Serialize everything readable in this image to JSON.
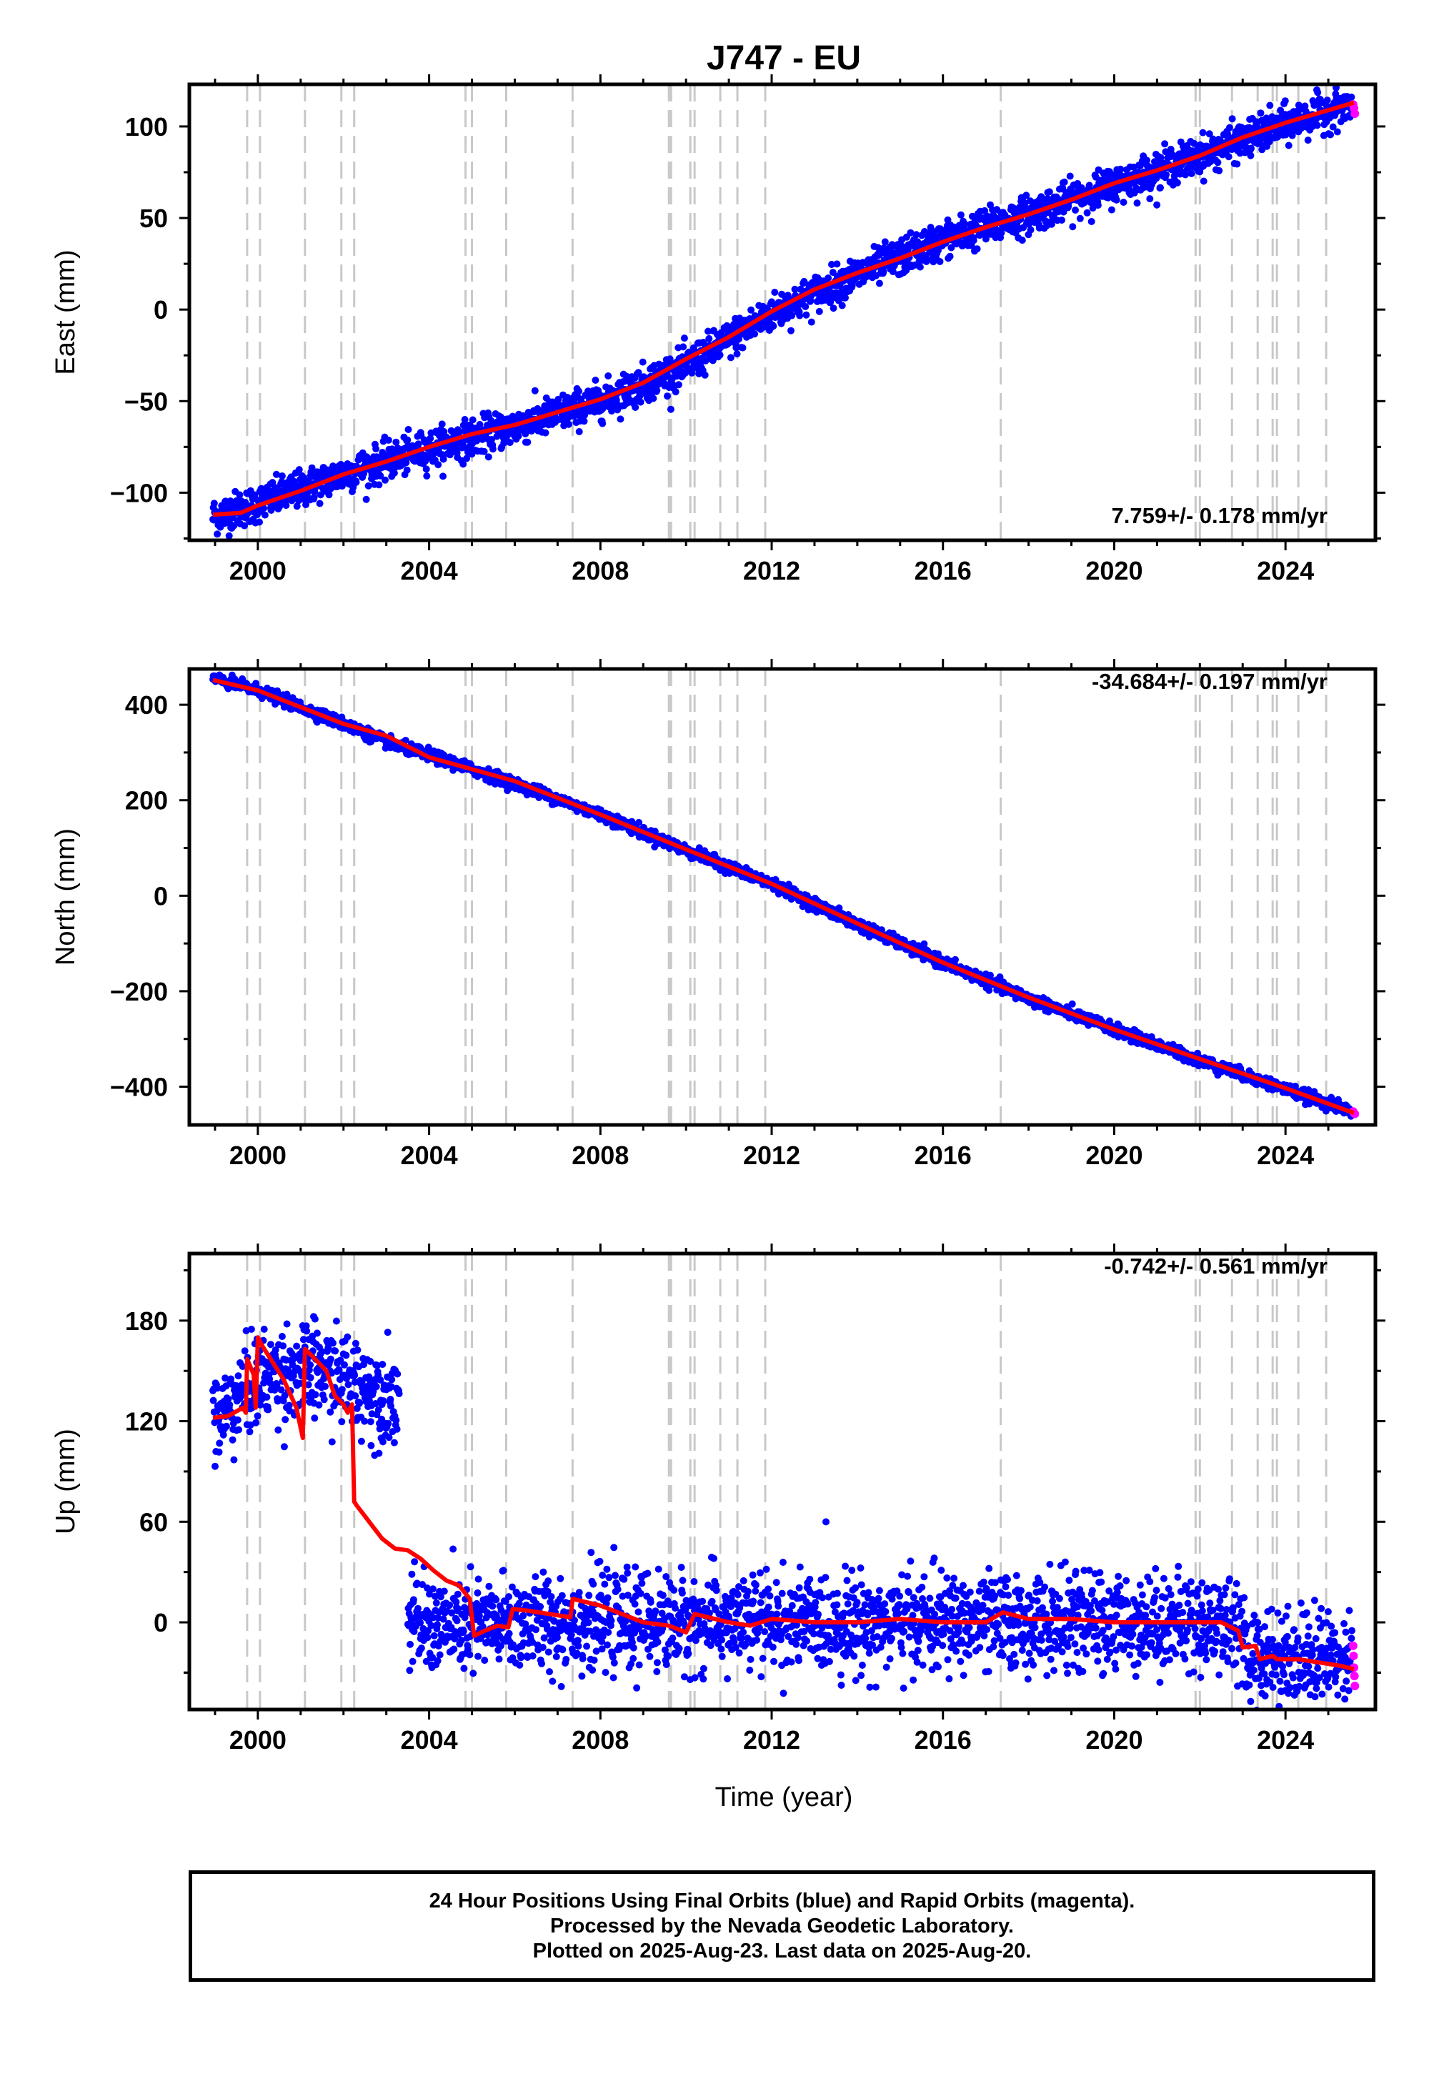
{
  "title": "J747 - EU",
  "colors": {
    "final_orbits": "#0000ff",
    "rapid_orbits": "#ff00ff",
    "model": "#ff0000",
    "events": "#c8c8c8"
  },
  "caption": {
    "line1": "24 Hour Positions Using Final Orbits (blue) and Rapid Orbits (magenta).",
    "line2": "Processed by the Nevada Geodetic Laboratory.",
    "line3": "Plotted on 2025-Aug-23. Last data on 2025-Aug-20."
  },
  "chart_data": [
    {
      "type": "scatter",
      "component": "east",
      "ylabel": "East (mm)",
      "xlim": [
        1998.4,
        2026.1
      ],
      "ylim": [
        -126,
        123
      ],
      "xticks": [
        2000,
        2004,
        2008,
        2012,
        2016,
        2020,
        2024
      ],
      "yticks": [
        -100,
        -50,
        0,
        50,
        100
      ],
      "rate_label": "7.759+/- 0.178 mm/yr",
      "data_start": 1998.95,
      "data_end": 2025.62,
      "gaps": [],
      "series": [
        {
          "name": "Final Orbits",
          "color": "#0000ff",
          "x": [
            1998.95,
            2000.0,
            2002.0,
            2004.0,
            2006.0,
            2008.0,
            2010.0,
            2012.0,
            2014.0,
            2016.0,
            2018.0,
            2020.0,
            2022.0,
            2024.0,
            2025.5
          ],
          "y": [
            -113,
            -106,
            -90,
            -76,
            -64,
            -50,
            -31,
            -2,
            19,
            38,
            52,
            68,
            84,
            101,
            112
          ],
          "scatter_mm": 5
        },
        {
          "name": "Rapid Orbits",
          "color": "#ff00ff",
          "x": [
            2025.58,
            2025.6,
            2025.62
          ],
          "y": [
            112,
            110,
            107
          ]
        }
      ],
      "model": {
        "x": [
          1998.95,
          1999.6,
          2000.0,
          2001.0,
          2002.0,
          2003.0,
          2004.0,
          2005.0,
          2006.0,
          2007.0,
          2008.0,
          2009.0,
          2010.0,
          2011.0,
          2012.0,
          2013.0,
          2014.0,
          2015.0,
          2016.0,
          2017.0,
          2018.0,
          2019.0,
          2020.0,
          2021.0,
          2022.0,
          2023.0,
          2024.0,
          2025.6
        ],
        "y": [
          -112,
          -111,
          -107,
          -99,
          -90,
          -83,
          -75,
          -68,
          -63,
          -56,
          -49,
          -40,
          -27,
          -15,
          -1,
          11,
          20,
          28,
          37,
          45,
          52,
          60,
          69,
          76,
          84,
          94,
          102,
          113
        ]
      }
    },
    {
      "type": "scatter",
      "component": "north",
      "ylabel": "North (mm)",
      "xlim": [
        1998.4,
        2026.1
      ],
      "ylim": [
        -480,
        475
      ],
      "xticks": [
        2000,
        2004,
        2008,
        2012,
        2016,
        2020,
        2024
      ],
      "yticks": [
        -400,
        -200,
        0,
        200,
        400
      ],
      "rate_label": "-34.684+/- 0.197 mm/yr",
      "data_start": 1998.95,
      "data_end": 2025.62,
      "gaps": [],
      "series": [
        {
          "name": "Final Orbits",
          "color": "#0000ff",
          "x": [
            1998.95,
            2000.0,
            2002.0,
            2003.2,
            2004.0,
            2006.0,
            2008.0,
            2010.0,
            2012.0,
            2014.0,
            2016.0,
            2018.0,
            2020.0,
            2022.0,
            2024.0,
            2025.5
          ],
          "y": [
            455,
            430,
            360,
            315,
            295,
            235,
            170,
            95,
            25,
            -60,
            -140,
            -215,
            -280,
            -345,
            -405,
            -450
          ],
          "scatter_mm": 6
        },
        {
          "name": "Rapid Orbits",
          "color": "#ff00ff",
          "x": [
            2025.58,
            2025.6,
            2025.62
          ],
          "y": [
            -452,
            -455,
            -457
          ]
        }
      ],
      "model": {
        "x": [
          1998.95,
          2000.0,
          2002.0,
          2003.0,
          2004.0,
          2006.0,
          2008.0,
          2010.0,
          2012.0,
          2014.0,
          2016.0,
          2018.0,
          2020.0,
          2022.0,
          2024.0,
          2025.6
        ],
        "y": [
          452,
          430,
          360,
          335,
          290,
          240,
          170,
          97,
          25,
          -58,
          -140,
          -213,
          -280,
          -342,
          -403,
          -455
        ]
      }
    },
    {
      "type": "scatter",
      "component": "up",
      "ylabel": "Up (mm)",
      "xlabel": "Time (year)",
      "xlim": [
        1998.4,
        2026.1
      ],
      "ylim": [
        -52,
        220
      ],
      "xticks": [
        2000,
        2004,
        2008,
        2012,
        2016,
        2020,
        2024
      ],
      "yticks": [
        0,
        60,
        120,
        180
      ],
      "rate_label": "-0.742+/- 0.561 mm/yr",
      "data_start": 1998.95,
      "data_end": 2025.62,
      "gaps": [
        [
          2003.3,
          2003.5
        ]
      ],
      "series": [
        {
          "name": "Final Orbits",
          "color": "#0000ff",
          "x": [
            1998.95,
            1999.5,
            2000.0,
            2000.5,
            2001.0,
            2001.5,
            2002.0,
            2002.5,
            2003.0,
            2003.3,
            2003.5,
            2004.0,
            2005.0,
            2006.0,
            2008.0,
            2010.0,
            2012.0,
            2014.0,
            2016.0,
            2018.0,
            2020.0,
            2022.0,
            2022.9,
            2023.0,
            2024.0,
            2025.5
          ],
          "y": [
            118,
            132,
            145,
            148,
            150,
            150,
            145,
            140,
            135,
            135,
            0,
            -2,
            -3,
            0,
            0,
            0,
            0,
            0,
            0,
            0,
            0,
            0,
            0,
            -20,
            -20,
            -20
          ],
          "scatter_mm": 14
        },
        {
          "name": "Rapid Orbits",
          "color": "#ff00ff",
          "x": [
            2025.58,
            2025.59,
            2025.6,
            2025.61,
            2025.62
          ],
          "y": [
            -14,
            -20,
            -27,
            -32,
            -38
          ]
        }
      ],
      "model": {
        "x": [
          1998.95,
          1999.3,
          1999.65,
          1999.72,
          1999.75,
          1999.9,
          1999.95,
          2000.0,
          2000.1,
          2000.3,
          2000.6,
          2000.9,
          2001.05,
          2001.1,
          2001.3,
          2001.6,
          2001.8,
          2002.0,
          2002.1,
          2002.2,
          2002.25,
          2002.3,
          2002.6,
          2002.9,
          2003.2,
          2003.5,
          2003.8,
          2004.1,
          2004.4,
          2004.7,
          2004.95,
          2005.05,
          2005.3,
          2005.6,
          2005.85,
          2005.95,
          2006.3,
          2006.8,
          2007.3,
          2007.35,
          2008.0,
          2008.5,
          2009.0,
          2009.6,
          2010.0,
          2010.2,
          2011.0,
          2011.5,
          2012.0,
          2013.0,
          2014.0,
          2015.0,
          2016.0,
          2017.0,
          2017.4,
          2018.0,
          2019.0,
          2020.0,
          2021.0,
          2021.9,
          2022.5,
          2022.9,
          2023.0,
          2023.3,
          2023.4,
          2023.7,
          2023.8,
          2024.3,
          2024.8,
          2025.3,
          2025.6
        ],
        "y": [
          122,
          123,
          128,
          125,
          157,
          148,
          128,
          170,
          165,
          157,
          145,
          128,
          110,
          163,
          158,
          150,
          135,
          130,
          125,
          130,
          72,
          70,
          60,
          50,
          44,
          43,
          38,
          31,
          25,
          22,
          14,
          -8,
          -5,
          -2,
          -3,
          8,
          7,
          5,
          3,
          14,
          10,
          5,
          0,
          -2,
          -6,
          5,
          0,
          -2,
          2,
          0,
          0,
          2,
          0,
          0,
          6,
          2,
          2,
          0,
          0,
          0,
          0,
          -5,
          -15,
          -14,
          -22,
          -20,
          -22,
          -22,
          -24,
          -26,
          -28
        ]
      }
    }
  ],
  "events": [
    1999.75,
    2000.05,
    2001.1,
    2001.95,
    2002.25,
    2004.85,
    2005.0,
    2005.8,
    2007.35,
    2009.6,
    2009.65,
    2010.1,
    2010.2,
    2010.8,
    2011.2,
    2011.85,
    2017.35,
    2021.9,
    2022.0,
    2022.75,
    2023.35,
    2023.7,
    2023.8,
    2024.3,
    2024.95
  ]
}
